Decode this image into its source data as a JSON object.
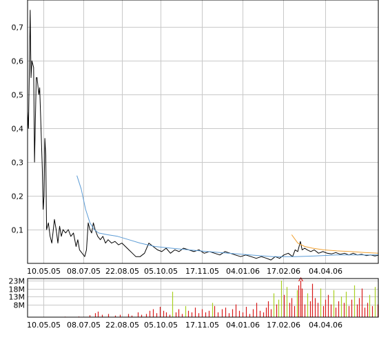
{
  "chart_data": [
    {
      "type": "line",
      "title": "",
      "xlabel": "",
      "ylabel": "",
      "x_ticks": [
        "10.05.05",
        "08.07.05",
        "22.08.05",
        "05.10.05",
        "17.11.05",
        "04.01.06",
        "17.02.06",
        "04.04.06"
      ],
      "y_ticks": [
        "0,7",
        "0,6",
        "0,5",
        "0,4",
        "0,3",
        "0,2",
        "0,1"
      ],
      "y_tick_values": [
        0.7,
        0.6,
        0.5,
        0.4,
        0.3,
        0.2,
        0.1
      ],
      "ylim": [
        0.0,
        0.78
      ],
      "xlim": [
        "2005-04-07",
        "2006-05-17"
      ],
      "grid": true,
      "series": [
        {
          "color": "#000000",
          "points": [
            [
              "2005-04-07",
              0.45
            ],
            [
              "2005-04-08",
              0.4
            ],
            [
              "2005-04-09",
              0.56
            ],
            [
              "2005-04-10",
              0.75
            ],
            [
              "2005-04-11",
              0.55
            ],
            [
              "2005-04-12",
              0.6
            ],
            [
              "2005-04-14",
              0.58
            ],
            [
              "2005-04-15",
              0.3
            ],
            [
              "2005-04-17",
              0.55
            ],
            [
              "2005-04-18",
              0.55
            ],
            [
              "2005-04-20",
              0.5
            ],
            [
              "2005-04-21",
              0.52
            ],
            [
              "2005-04-22",
              0.44
            ],
            [
              "2005-04-24",
              0.28
            ],
            [
              "2005-04-25",
              0.16
            ],
            [
              "2005-04-26",
              0.2
            ],
            [
              "2005-04-27",
              0.37
            ],
            [
              "2005-04-28",
              0.32
            ],
            [
              "2005-04-29",
              0.1
            ],
            [
              "2005-05-01",
              0.12
            ],
            [
              "2005-05-03",
              0.08
            ],
            [
              "2005-05-05",
              0.06
            ],
            [
              "2005-05-08",
              0.13
            ],
            [
              "2005-05-10",
              0.1
            ],
            [
              "2005-05-12",
              0.06
            ],
            [
              "2005-05-14",
              0.11
            ],
            [
              "2005-05-16",
              0.08
            ],
            [
              "2005-05-18",
              0.1
            ],
            [
              "2005-05-21",
              0.09
            ],
            [
              "2005-05-24",
              0.1
            ],
            [
              "2005-05-27",
              0.08
            ],
            [
              "2005-05-30",
              0.09
            ],
            [
              "2005-06-02",
              0.05
            ],
            [
              "2005-06-04",
              0.07
            ],
            [
              "2005-06-06",
              0.04
            ],
            [
              "2005-06-09",
              0.03
            ],
            [
              "2005-06-12",
              0.02
            ],
            [
              "2005-06-14",
              0.04
            ],
            [
              "2005-06-16",
              0.12
            ],
            [
              "2005-06-18",
              0.1
            ],
            [
              "2005-06-20",
              0.09
            ],
            [
              "2005-06-22",
              0.12
            ],
            [
              "2005-06-24",
              0.1
            ],
            [
              "2005-06-27",
              0.08
            ],
            [
              "2005-06-30",
              0.07
            ],
            [
              "2005-07-03",
              0.08
            ],
            [
              "2005-07-06",
              0.06
            ],
            [
              "2005-07-09",
              0.07
            ],
            [
              "2005-07-13",
              0.06
            ],
            [
              "2005-07-17",
              0.065
            ],
            [
              "2005-07-21",
              0.055
            ],
            [
              "2005-07-25",
              0.06
            ],
            [
              "2005-07-29",
              0.05
            ],
            [
              "2005-08-02",
              0.04
            ],
            [
              "2005-08-06",
              0.03
            ],
            [
              "2005-08-10",
              0.02
            ],
            [
              "2005-08-15",
              0.02
            ],
            [
              "2005-08-20",
              0.03
            ],
            [
              "2005-08-25",
              0.06
            ],
            [
              "2005-08-30",
              0.05
            ],
            [
              "2005-09-04",
              0.04
            ],
            [
              "2005-09-09",
              0.035
            ],
            [
              "2005-09-14",
              0.045
            ],
            [
              "2005-09-19",
              0.03
            ],
            [
              "2005-09-24",
              0.04
            ],
            [
              "2005-09-29",
              0.035
            ],
            [
              "2005-10-04",
              0.045
            ],
            [
              "2005-10-10",
              0.04
            ],
            [
              "2005-10-16",
              0.035
            ],
            [
              "2005-10-22",
              0.04
            ],
            [
              "2005-10-28",
              0.03
            ],
            [
              "2005-11-03",
              0.035
            ],
            [
              "2005-11-09",
              0.03
            ],
            [
              "2005-11-15",
              0.025
            ],
            [
              "2005-11-21",
              0.035
            ],
            [
              "2005-11-27",
              0.03
            ],
            [
              "2005-12-03",
              0.025
            ],
            [
              "2005-12-09",
              0.02
            ],
            [
              "2005-12-15",
              0.025
            ],
            [
              "2005-12-21",
              0.02
            ],
            [
              "2005-12-27",
              0.015
            ],
            [
              "2006-01-02",
              0.02
            ],
            [
              "2006-01-08",
              0.015
            ],
            [
              "2006-01-13",
              0.01
            ],
            [
              "2006-01-18",
              0.02
            ],
            [
              "2006-01-23",
              0.015
            ],
            [
              "2006-01-28",
              0.025
            ],
            [
              "2006-02-02",
              0.03
            ],
            [
              "2006-02-07",
              0.02
            ],
            [
              "2006-02-10",
              0.04
            ],
            [
              "2006-02-13",
              0.035
            ],
            [
              "2006-02-16",
              0.065
            ],
            [
              "2006-02-18",
              0.04
            ],
            [
              "2006-02-21",
              0.045
            ],
            [
              "2006-02-24",
              0.04
            ],
            [
              "2006-02-28",
              0.035
            ],
            [
              "2006-03-04",
              0.04
            ],
            [
              "2006-03-09",
              0.03
            ],
            [
              "2006-03-14",
              0.035
            ],
            [
              "2006-03-19",
              0.03
            ],
            [
              "2006-03-24",
              0.028
            ],
            [
              "2006-03-29",
              0.032
            ],
            [
              "2006-04-03",
              0.027
            ],
            [
              "2006-04-08",
              0.03
            ],
            [
              "2006-04-13",
              0.025
            ],
            [
              "2006-04-18",
              0.03
            ],
            [
              "2006-04-23",
              0.025
            ],
            [
              "2006-04-28",
              0.027
            ],
            [
              "2006-05-03",
              0.023
            ],
            [
              "2006-05-08",
              0.025
            ],
            [
              "2006-05-13",
              0.022
            ],
            [
              "2006-05-17",
              0.024
            ]
          ]
        },
        {
          "color": "#5b9bd5",
          "points": [
            [
              "2005-06-03",
              0.26
            ],
            [
              "2005-06-08",
              0.22
            ],
            [
              "2005-06-13",
              0.16
            ],
            [
              "2005-06-18",
              0.12
            ],
            [
              "2005-06-23",
              0.1
            ],
            [
              "2005-06-28",
              0.09
            ],
            [
              "2005-07-08",
              0.085
            ],
            [
              "2005-07-20",
              0.08
            ],
            [
              "2005-08-02",
              0.07
            ],
            [
              "2005-08-15",
              0.06
            ],
            [
              "2005-09-01",
              0.05
            ],
            [
              "2005-09-20",
              0.045
            ],
            [
              "2005-10-10",
              0.04
            ],
            [
              "2005-11-01",
              0.035
            ],
            [
              "2005-11-25",
              0.03
            ],
            [
              "2005-12-20",
              0.025
            ],
            [
              "2006-01-15",
              0.02
            ],
            [
              "2006-02-10",
              0.02
            ],
            [
              "2006-03-05",
              0.022
            ],
            [
              "2006-03-30",
              0.025
            ],
            [
              "2006-04-25",
              0.025
            ],
            [
              "2006-05-17",
              0.025
            ]
          ]
        },
        {
          "color": "#f0a030",
          "points": [
            [
              "2006-02-06",
              0.085
            ],
            [
              "2006-02-13",
              0.06
            ],
            [
              "2006-02-21",
              0.05
            ],
            [
              "2006-03-02",
              0.045
            ],
            [
              "2006-03-15",
              0.04
            ],
            [
              "2006-03-30",
              0.037
            ],
            [
              "2006-04-15",
              0.035
            ],
            [
              "2006-05-01",
              0.032
            ],
            [
              "2006-05-17",
              0.03
            ]
          ]
        }
      ]
    },
    {
      "type": "bar",
      "title": "",
      "xlabel": "",
      "ylabel": "",
      "x_ticks": [
        "10.05.05",
        "08.07.05",
        "22.08.05",
        "05.10.05",
        "17.11.05",
        "04.01.06",
        "17.02.06",
        "04.04.06"
      ],
      "y_ticks": [
        "23M",
        "18M",
        "13M",
        "8M"
      ],
      "y_tick_values": [
        23,
        18,
        13,
        8
      ],
      "ylim": [
        0,
        23
      ],
      "xlim": [
        "2005-04-07",
        "2006-05-17"
      ],
      "grid": true,
      "colors": [
        "#d81818",
        "#a8d020"
      ],
      "overflow_arrow": {
        "date": "2006-02-16",
        "color": "#d81818"
      },
      "values": {
        "2005-05-20": 0.3,
        "2005-06-05": 0.4,
        "2005-06-18": 1.2,
        "2005-06-24": 2.5,
        "2005-06-27": 3.5,
        "2005-07-02": 1.5,
        "2005-07-09": 2.0,
        "2005-07-17": 1.0,
        "2005-07-23": 1.5,
        "2005-08-01": 2.0,
        "2005-08-05": 1.0,
        "2005-08-12": 3.0,
        "2005-08-16": 1.5,
        "2005-08-22": 2.0,
        "2005-08-26": 4.0,
        "2005-08-30": 5.0,
        "2005-09-03": 2.5,
        "2005-09-07": 6.5,
        "2005-09-11": 4.0,
        "2005-09-14": 3.0,
        "2005-09-18": 1.5,
        "2005-09-21": 16.0,
        "2005-09-25": 3.0,
        "2005-09-28": 5.0,
        "2005-10-02": 2.0,
        "2005-10-06": 7.0,
        "2005-10-09": 4.0,
        "2005-10-13": 3.0,
        "2005-10-17": 6.0,
        "2005-10-21": 2.5,
        "2005-10-25": 5.0,
        "2005-10-29": 3.0,
        "2005-11-02": 4.0,
        "2005-11-06": 9.0,
        "2005-11-09": 7.0,
        "2005-11-13": 3.0,
        "2005-11-17": 5.0,
        "2005-11-21": 6.0,
        "2005-11-25": 2.5,
        "2005-11-29": 5.0,
        "2005-12-03": 8.0,
        "2005-12-07": 4.0,
        "2005-12-11": 3.0,
        "2005-12-15": 6.5,
        "2005-12-19": 2.0,
        "2005-12-23": 5.0,
        "2005-12-27": 9.0,
        "2005-12-31": 4.0,
        "2006-01-04": 3.0,
        "2006-01-07": 6.0,
        "2006-01-10": 10.0,
        "2006-01-13": 5.0,
        "2006-01-16": 15.0,
        "2006-01-19": 8.0,
        "2006-01-22": 11.0,
        "2006-01-25": 23.0,
        "2006-01-28": 14.0,
        "2006-01-31": 19.0,
        "2006-02-03": 9.0,
        "2006-02-06": 12.0,
        "2006-02-09": 7.0,
        "2006-02-12": 17.0,
        "2006-02-14": 20.0,
        "2006-02-16": 23.0,
        "2006-02-18": 18.0,
        "2006-02-21": 8.0,
        "2006-02-24": 15.0,
        "2006-02-27": 10.0,
        "2006-03-02": 21.0,
        "2006-03-05": 12.0,
        "2006-03-08": 9.0,
        "2006-03-11": 18.0,
        "2006-03-14": 7.0,
        "2006-03-17": 11.0,
        "2006-03-20": 14.0,
        "2006-03-23": 8.0,
        "2006-03-26": 17.0,
        "2006-03-29": 6.0,
        "2006-04-01": 10.0,
        "2006-04-04": 13.0,
        "2006-04-07": 9.0,
        "2006-04-10": 16.0,
        "2006-04-13": 7.0,
        "2006-04-16": 11.0,
        "2006-04-19": 20.0,
        "2006-04-22": 8.0,
        "2006-04-25": 12.0,
        "2006-04-28": 18.0,
        "2006-05-01": 6.0,
        "2006-05-04": 9.0,
        "2006-05-07": 14.0,
        "2006-05-10": 7.0,
        "2006-05-13": 19.0,
        "2006-05-16": 8.0
      },
      "color_index": {
        "2005-09-21": 1,
        "2005-10-06": 1,
        "2005-11-06": 1,
        "2006-01-16": 1,
        "2006-01-25": 1,
        "2006-01-31": 1,
        "2006-02-12": 1,
        "2006-02-24": 1,
        "2006-03-11": 1,
        "2006-03-26": 1,
        "2006-04-10": 1,
        "2006-04-19": 1,
        "2006-05-07": 1,
        "2006-05-13": 1,
        "2006-01-22": 1,
        "2006-04-04": 1
      }
    }
  ]
}
